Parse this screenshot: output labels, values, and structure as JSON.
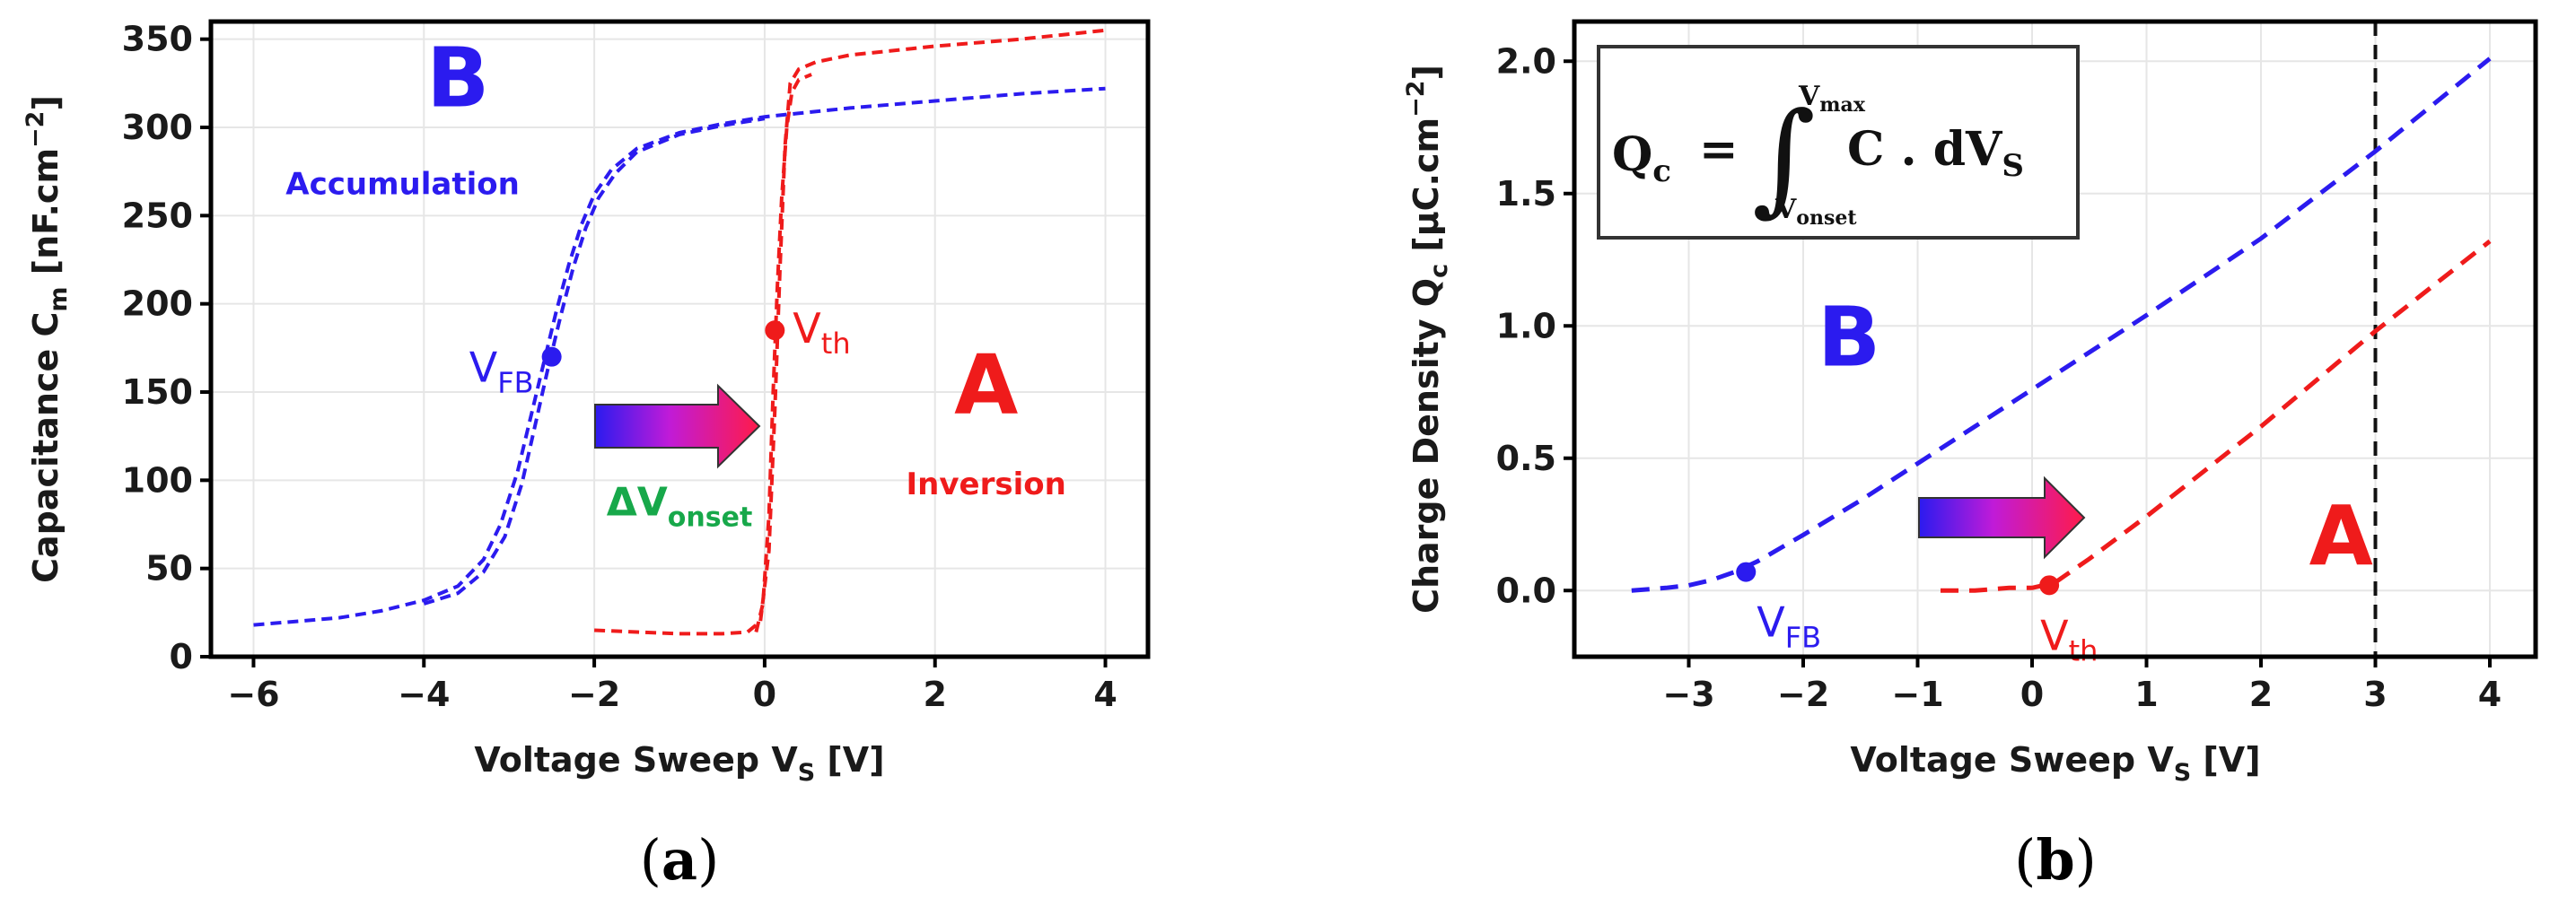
{
  "colors": {
    "blue": "#2b1bef",
    "red": "#ef1b1b",
    "green": "#17a84a",
    "grid": "#e6e6e6"
  },
  "chart_data": [
    {
      "id": "a",
      "type": "line",
      "panel_label": "a",
      "xlabel_main": "Voltage Sweep  V",
      "xlabel_sub": "S",
      "xlabel_unit": " [V]",
      "ylabel_main": "Capacitance  C",
      "ylabel_sub": "m",
      "ylabel_unit": " [nF.cm",
      "ylabel_exp": "−2",
      "ylabel_end": "]",
      "xlim": [
        -6.5,
        4.5
      ],
      "ylim": [
        0,
        360
      ],
      "xticks": [
        -6,
        -4,
        -2,
        0,
        2,
        4
      ],
      "xtick_labels": [
        "−6",
        "−4",
        "−2",
        "0",
        "2",
        "4"
      ],
      "yticks": [
        0,
        50,
        100,
        150,
        200,
        250,
        300,
        350
      ],
      "ytick_labels": [
        "0",
        "50",
        "100",
        "150",
        "200",
        "250",
        "300",
        "350"
      ],
      "grid": true,
      "series": [
        {
          "name": "B (Accumulation) forward",
          "color": "#2b1bef",
          "x": [
            -6,
            -5,
            -4.5,
            -4,
            -3.6,
            -3.3,
            -3.1,
            -2.9,
            -2.75,
            -2.6,
            -2.45,
            -2.3,
            -2.15,
            -2.0,
            -1.8,
            -1.5,
            -1.0,
            -0.5,
            0,
            1,
            2,
            3,
            4
          ],
          "y": [
            18,
            22,
            26,
            32,
            40,
            55,
            75,
            105,
            135,
            165,
            195,
            222,
            245,
            262,
            276,
            288,
            297,
            302,
            306,
            311,
            315,
            319,
            322
          ]
        },
        {
          "name": "B (Accumulation) reverse",
          "color": "#2b1bef",
          "x": [
            -4,
            -3.6,
            -3.3,
            -3.05,
            -2.85,
            -2.7,
            -2.55,
            -2.4,
            -2.25,
            -2.1,
            -1.95,
            -1.75,
            -1.5,
            -1.0,
            -0.5,
            0
          ],
          "y": [
            30,
            36,
            48,
            68,
            98,
            130,
            162,
            192,
            220,
            243,
            260,
            274,
            286,
            296,
            301,
            305
          ]
        },
        {
          "name": "A (Inversion) forward",
          "color": "#ef1b1b",
          "x": [
            -2,
            -1.5,
            -1.0,
            -0.5,
            -0.2,
            -0.05,
            0.05,
            0.12,
            0.18,
            0.24,
            0.3,
            0.4,
            0.6,
            1,
            2,
            3,
            4
          ],
          "y": [
            15,
            14,
            13,
            13,
            14,
            20,
            60,
            140,
            220,
            290,
            325,
            333,
            337,
            341,
            346,
            350,
            355
          ]
        },
        {
          "name": "A (Inversion) reverse",
          "color": "#ef1b1b",
          "x": [
            -0.1,
            -0.02,
            0.05,
            0.1,
            0.15,
            0.2,
            0.26,
            0.32,
            0.4,
            0.55
          ],
          "y": [
            14,
            30,
            80,
            150,
            210,
            260,
            300,
            320,
            327,
            330
          ]
        }
      ],
      "points": [
        {
          "label": "V",
          "sub": "FB",
          "x": -2.5,
          "y": 170,
          "color": "#2b1bef"
        },
        {
          "label": "V",
          "sub": "th",
          "x": 0.12,
          "y": 185,
          "color": "#ef1b1b"
        }
      ],
      "annotations": [
        {
          "text": "B",
          "x": -3.6,
          "y": 312,
          "color": "#2b1bef"
        },
        {
          "text": "A",
          "x": 2.6,
          "y": 138,
          "color": "#ef1b1b"
        },
        {
          "text": "Accumulation",
          "x": -4.25,
          "y": 262,
          "color": "#2b1bef"
        },
        {
          "text": "Inversion",
          "x": 2.6,
          "y": 92,
          "color": "#ef1b1b"
        },
        {
          "text": "ΔV",
          "sub": "onset",
          "x": -1.0,
          "y": 80,
          "color": "#17a84a"
        }
      ]
    },
    {
      "id": "b",
      "type": "line",
      "panel_label": "b",
      "xlabel_main": "Voltage Sweep  V",
      "xlabel_sub": "S",
      "xlabel_unit": " [V]",
      "ylabel_main": "Charge Density  Q",
      "ylabel_sub": "c",
      "ylabel_unit": " [μC.cm",
      "ylabel_exp": "−2",
      "ylabel_end": "]",
      "xlim": [
        -4.0,
        4.4
      ],
      "ylim": [
        -0.25,
        2.15
      ],
      "xticks": [
        -3,
        -2,
        -1,
        0,
        1,
        2,
        3,
        4
      ],
      "xtick_labels": [
        "−3",
        "−2",
        "−1",
        "0",
        "1",
        "2",
        "3",
        "4"
      ],
      "yticks": [
        0.0,
        0.5,
        1.0,
        1.5,
        2.0
      ],
      "ytick_labels": [
        "0.0",
        "0.5",
        "1.0",
        "1.5",
        "2.0"
      ],
      "grid": true,
      "vline_x": 3,
      "formula": {
        "lhs": "Q",
        "lhs_sub": "c",
        "eq": "=",
        "integral": "∫",
        "upper": "V",
        "upper_sub": "max",
        "lower": "V",
        "lower_sub": "onset",
        "integrand": "C . dV",
        "integrand_sub": "S"
      },
      "series": [
        {
          "name": "B",
          "color": "#2b1bef",
          "x": [
            -3.5,
            -3.2,
            -3.0,
            -2.8,
            -2.6,
            -2.4,
            -2.2,
            -2.0,
            -1.5,
            -1.0,
            -0.5,
            0,
            1,
            2,
            3,
            4
          ],
          "y": [
            0.0,
            0.01,
            0.02,
            0.04,
            0.07,
            0.11,
            0.16,
            0.21,
            0.34,
            0.48,
            0.62,
            0.76,
            1.04,
            1.33,
            1.66,
            2.01
          ]
        },
        {
          "name": "A",
          "color": "#ef1b1b",
          "x": [
            -0.8,
            -0.5,
            -0.2,
            0.0,
            0.1,
            0.2,
            0.3,
            0.5,
            1.0,
            2.0,
            3.0,
            4.0
          ],
          "y": [
            0.0,
            0.0,
            0.01,
            0.01,
            0.02,
            0.03,
            0.06,
            0.12,
            0.28,
            0.62,
            0.98,
            1.32
          ]
        }
      ],
      "points": [
        {
          "label": "V",
          "sub": "FB",
          "x": -2.5,
          "y": 0.07,
          "color": "#2b1bef"
        },
        {
          "label": "V",
          "sub": "th",
          "x": 0.15,
          "y": 0.02,
          "color": "#ef1b1b"
        }
      ],
      "annotations": [
        {
          "text": "B",
          "x": -1.6,
          "y": 0.85,
          "color": "#2b1bef"
        },
        {
          "text": "A",
          "x": 2.7,
          "y": 0.1,
          "color": "#ef1b1b"
        }
      ]
    }
  ]
}
